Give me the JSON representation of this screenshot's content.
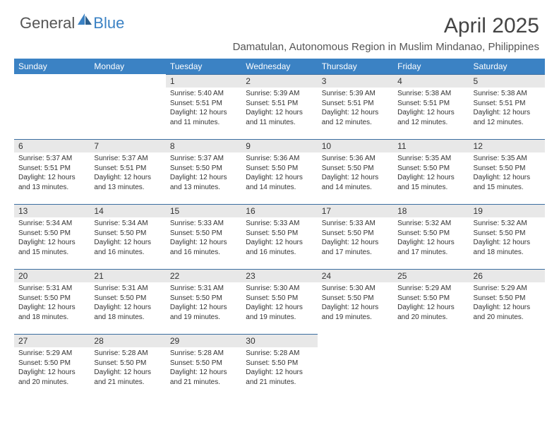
{
  "logo": {
    "text_general": "General",
    "text_blue": "Blue"
  },
  "title": "April 2025",
  "subtitle": "Damatulan, Autonomous Region in Muslim Mindanao, Philippines",
  "colors": {
    "header_bg": "#3b82c4",
    "header_text": "#ffffff",
    "daynum_bg": "#e8e8e8",
    "border": "#3b6ea0",
    "text": "#333333",
    "title_color": "#444444"
  },
  "weekdays": [
    "Sunday",
    "Monday",
    "Tuesday",
    "Wednesday",
    "Thursday",
    "Friday",
    "Saturday"
  ],
  "grid": [
    [
      null,
      null,
      {
        "n": "1",
        "sr": "5:40 AM",
        "ss": "5:51 PM",
        "dl": "12 hours and 11 minutes."
      },
      {
        "n": "2",
        "sr": "5:39 AM",
        "ss": "5:51 PM",
        "dl": "12 hours and 11 minutes."
      },
      {
        "n": "3",
        "sr": "5:39 AM",
        "ss": "5:51 PM",
        "dl": "12 hours and 12 minutes."
      },
      {
        "n": "4",
        "sr": "5:38 AM",
        "ss": "5:51 PM",
        "dl": "12 hours and 12 minutes."
      },
      {
        "n": "5",
        "sr": "5:38 AM",
        "ss": "5:51 PM",
        "dl": "12 hours and 12 minutes."
      }
    ],
    [
      {
        "n": "6",
        "sr": "5:37 AM",
        "ss": "5:51 PM",
        "dl": "12 hours and 13 minutes."
      },
      {
        "n": "7",
        "sr": "5:37 AM",
        "ss": "5:51 PM",
        "dl": "12 hours and 13 minutes."
      },
      {
        "n": "8",
        "sr": "5:37 AM",
        "ss": "5:50 PM",
        "dl": "12 hours and 13 minutes."
      },
      {
        "n": "9",
        "sr": "5:36 AM",
        "ss": "5:50 PM",
        "dl": "12 hours and 14 minutes."
      },
      {
        "n": "10",
        "sr": "5:36 AM",
        "ss": "5:50 PM",
        "dl": "12 hours and 14 minutes."
      },
      {
        "n": "11",
        "sr": "5:35 AM",
        "ss": "5:50 PM",
        "dl": "12 hours and 15 minutes."
      },
      {
        "n": "12",
        "sr": "5:35 AM",
        "ss": "5:50 PM",
        "dl": "12 hours and 15 minutes."
      }
    ],
    [
      {
        "n": "13",
        "sr": "5:34 AM",
        "ss": "5:50 PM",
        "dl": "12 hours and 15 minutes."
      },
      {
        "n": "14",
        "sr": "5:34 AM",
        "ss": "5:50 PM",
        "dl": "12 hours and 16 minutes."
      },
      {
        "n": "15",
        "sr": "5:33 AM",
        "ss": "5:50 PM",
        "dl": "12 hours and 16 minutes."
      },
      {
        "n": "16",
        "sr": "5:33 AM",
        "ss": "5:50 PM",
        "dl": "12 hours and 16 minutes."
      },
      {
        "n": "17",
        "sr": "5:33 AM",
        "ss": "5:50 PM",
        "dl": "12 hours and 17 minutes."
      },
      {
        "n": "18",
        "sr": "5:32 AM",
        "ss": "5:50 PM",
        "dl": "12 hours and 17 minutes."
      },
      {
        "n": "19",
        "sr": "5:32 AM",
        "ss": "5:50 PM",
        "dl": "12 hours and 18 minutes."
      }
    ],
    [
      {
        "n": "20",
        "sr": "5:31 AM",
        "ss": "5:50 PM",
        "dl": "12 hours and 18 minutes."
      },
      {
        "n": "21",
        "sr": "5:31 AM",
        "ss": "5:50 PM",
        "dl": "12 hours and 18 minutes."
      },
      {
        "n": "22",
        "sr": "5:31 AM",
        "ss": "5:50 PM",
        "dl": "12 hours and 19 minutes."
      },
      {
        "n": "23",
        "sr": "5:30 AM",
        "ss": "5:50 PM",
        "dl": "12 hours and 19 minutes."
      },
      {
        "n": "24",
        "sr": "5:30 AM",
        "ss": "5:50 PM",
        "dl": "12 hours and 19 minutes."
      },
      {
        "n": "25",
        "sr": "5:29 AM",
        "ss": "5:50 PM",
        "dl": "12 hours and 20 minutes."
      },
      {
        "n": "26",
        "sr": "5:29 AM",
        "ss": "5:50 PM",
        "dl": "12 hours and 20 minutes."
      }
    ],
    [
      {
        "n": "27",
        "sr": "5:29 AM",
        "ss": "5:50 PM",
        "dl": "12 hours and 20 minutes."
      },
      {
        "n": "28",
        "sr": "5:28 AM",
        "ss": "5:50 PM",
        "dl": "12 hours and 21 minutes."
      },
      {
        "n": "29",
        "sr": "5:28 AM",
        "ss": "5:50 PM",
        "dl": "12 hours and 21 minutes."
      },
      {
        "n": "30",
        "sr": "5:28 AM",
        "ss": "5:50 PM",
        "dl": "12 hours and 21 minutes."
      },
      null,
      null,
      null
    ]
  ],
  "labels": {
    "sunrise": "Sunrise: ",
    "sunset": "Sunset: ",
    "daylight": "Daylight: "
  }
}
